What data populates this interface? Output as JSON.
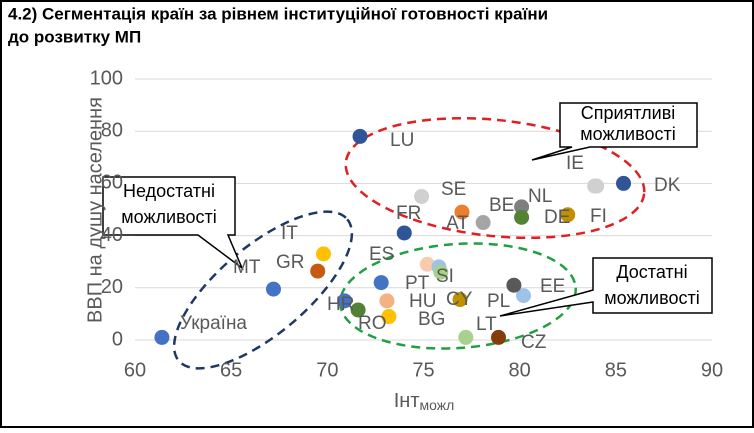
{
  "chart_data": {
    "type": "scatter",
    "title_lines": [
      "4.2) Сегментація країн за рівнем інституційної готовності країни",
      "до розвитку МП"
    ],
    "x_label": {
      "main": "Інт",
      "sub": "можл"
    },
    "y_label": "ВВП на душу населення",
    "x": [
      61.4,
      67.2,
      69.5,
      69.8,
      71.7,
      74.0,
      70.9,
      71.6,
      72.8,
      73.1,
      73.2,
      77.0,
      74.9,
      78.1,
      75.2,
      75.8,
      75.9,
      76.9,
      80.1,
      80.1,
      83.9,
      84.0,
      82.5,
      85.4,
      80.2,
      79.7,
      77.2,
      78.9
    ],
    "values": [
      1,
      19.5,
      26.4,
      33,
      78,
      41,
      15,
      11.5,
      22,
      15,
      9,
      49,
      55,
      45,
      29,
      28,
      26,
      15.5,
      51,
      47,
      59,
      59,
      48,
      60,
      17,
      21,
      1,
      1
    ],
    "colors": [
      "#4472c4",
      "#4472c4",
      "#c55a11",
      "#ffc000",
      "#2f5597",
      "#2f5597",
      "#4472c4",
      "#548235",
      "#4472c4",
      "#f4b183",
      "#ffc000",
      "#ed7d31",
      "#d0d0d0",
      "#a5a5a5",
      "#f8cbad",
      "#9dc3e6",
      "#a9d18e",
      "#bf9000",
      "#7f7f7f",
      "#548235",
      "#d0d0d0",
      "#d0d0d0",
      "#bf9000",
      "#2f5597",
      "#9dc3e6",
      "#595959",
      "#a9d18e",
      "#843c0c"
    ],
    "labels": [
      "Україна",
      "MT",
      "GR",
      "IT",
      "LU",
      "FR",
      "HR",
      "RO",
      "ES",
      "HU",
      "BG",
      "SE",
      null,
      "AT",
      "PT",
      null,
      "SI",
      "CY",
      "BE",
      "NL",
      "IE",
      "FI",
      "DE",
      "DK",
      "EE",
      "PL",
      "LT",
      "CZ"
    ],
    "xlim": [
      60,
      90
    ],
    "xticks": [
      60,
      65,
      70,
      75,
      80,
      85,
      90
    ],
    "ylim": [
      0,
      100
    ],
    "yticks": [
      0,
      20,
      40,
      60,
      80,
      100
    ],
    "grid": true,
    "annotations": [
      [
        "Сприятливі",
        "можливості"
      ],
      [
        "Недостатні",
        "можливості"
      ],
      [
        "Достатні",
        "можливості"
      ]
    ]
  }
}
